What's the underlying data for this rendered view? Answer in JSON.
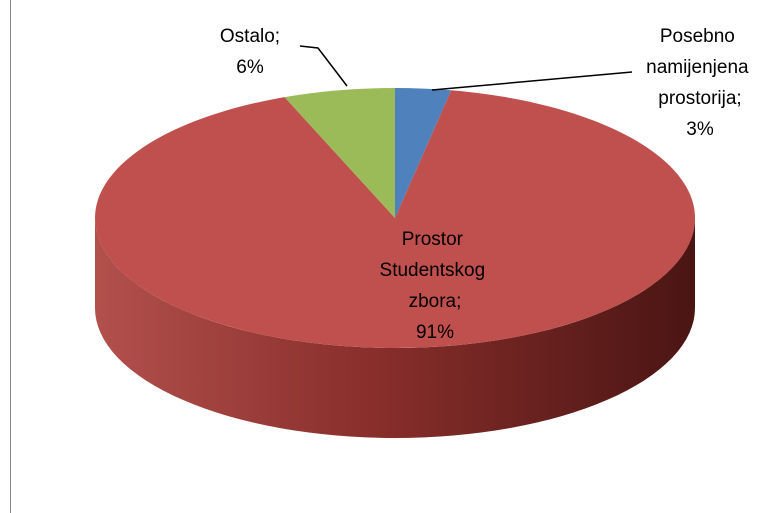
{
  "chart_data": {
    "type": "pie",
    "categories": [
      "Posebno namijenjena prostorija;",
      "Prostor Studentskog zbora;",
      "Ostalo;"
    ],
    "values": [
      3,
      91,
      6
    ],
    "value_labels": [
      "3%",
      "91%",
      "6%"
    ],
    "colors": [
      "#4f81bd",
      "#c0504d",
      "#9bbb59"
    ]
  }
}
